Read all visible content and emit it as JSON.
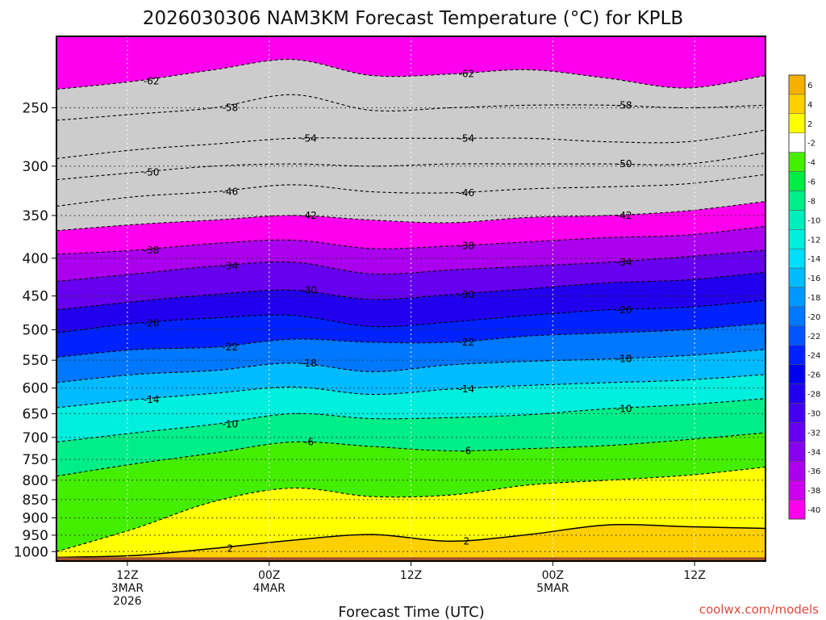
{
  "chart_data": {
    "type": "heatmap",
    "title": "2026030306 NAM3KM Forecast Temperature (°C) for KPLB",
    "xlabel": "Forecast Time (UTC)",
    "ylabel": "",
    "y_scale": "log-pressure",
    "y_inverted": true,
    "x_ticks": [
      {
        "lines": [
          "12Z",
          "3MAR",
          "2026"
        ]
      },
      {
        "lines": [
          "00Z",
          "4MAR"
        ]
      },
      {
        "lines": [
          "12Z"
        ]
      },
      {
        "lines": [
          "00Z",
          "5MAR"
        ]
      },
      {
        "lines": [
          "12Z"
        ]
      }
    ],
    "x_tick_hours": [
      6,
      18,
      30,
      42,
      54
    ],
    "xlim_hours": [
      0,
      60
    ],
    "y_ticks": [
      250,
      300,
      350,
      400,
      450,
      500,
      550,
      600,
      650,
      700,
      750,
      800,
      850,
      900,
      950,
      1000
    ],
    "ylim": [
      200,
      1030
    ],
    "grid": true,
    "colorbar": {
      "labels": [
        "6",
        "4",
        "2",
        "-2",
        "-4",
        "-6",
        "-8",
        "-10",
        "-12",
        "-14",
        "-16",
        "-18",
        "-20",
        "-22",
        "-24",
        "-26",
        "-28",
        "-30",
        "-32",
        "-34",
        "-36",
        "-38",
        "-40"
      ],
      "colors": [
        "#f5b000",
        "#ffd000",
        "#ffff00",
        "#ffffff",
        "#44ee00",
        "#00ee44",
        "#00ee88",
        "#00eebb",
        "#00eedd",
        "#00ddff",
        "#00bbff",
        "#0099ff",
        "#0077ff",
        "#0055ff",
        "#0022ff",
        "#0000ee",
        "#2200ee",
        "#4400ee",
        "#6600ee",
        "#8800ee",
        "#aa00ee",
        "#cc00ee",
        "#ff00ee"
      ]
    },
    "isotherms": [
      {
        "value": -62,
        "levels": [
          236,
          230,
          222,
          215,
          226,
          225,
          222,
          228,
          235,
          226
        ]
      },
      {
        "value": -58,
        "levels": [
          260,
          255,
          250,
          240,
          252,
          250,
          248,
          248,
          250,
          248
        ]
      },
      {
        "value": -54,
        "levels": [
          293,
          285,
          280,
          275,
          275,
          275,
          275,
          278,
          278,
          268
        ]
      },
      {
        "value": -50,
        "levels": [
          313,
          306,
          300,
          298,
          300,
          298,
          298,
          298,
          298,
          288
        ]
      },
      {
        "value": -46,
        "levels": [
          340,
          330,
          325,
          318,
          325,
          326,
          322,
          320,
          317,
          308
        ]
      },
      {
        "value": -42,
        "levels": [
          367,
          360,
          355,
          350,
          355,
          358,
          352,
          350,
          345,
          335
        ]
      },
      {
        "value": -38,
        "levels": [
          395,
          390,
          382,
          378,
          388,
          385,
          380,
          375,
          372,
          362
        ]
      },
      {
        "value": -34,
        "levels": [
          430,
          420,
          410,
          405,
          420,
          415,
          410,
          405,
          398,
          390
        ]
      },
      {
        "value": -30,
        "levels": [
          470,
          458,
          448,
          442,
          455,
          448,
          440,
          432,
          428,
          418
        ]
      },
      {
        "value": -26,
        "levels": [
          505,
          490,
          482,
          478,
          495,
          488,
          478,
          470,
          466,
          456
        ]
      },
      {
        "value": -22,
        "levels": [
          545,
          532,
          528,
          515,
          520,
          520,
          510,
          505,
          500,
          490
        ]
      },
      {
        "value": -18,
        "levels": [
          590,
          575,
          568,
          555,
          570,
          558,
          552,
          548,
          542,
          532
        ]
      },
      {
        "value": -14,
        "levels": [
          638,
          622,
          610,
          598,
          612,
          602,
          595,
          590,
          585,
          575
        ]
      },
      {
        "value": -10,
        "levels": [
          710,
          690,
          672,
          650,
          660,
          658,
          652,
          640,
          632,
          620
        ]
      },
      {
        "value": -6,
        "levels": [
          790,
          760,
          735,
          710,
          720,
          730,
          725,
          718,
          705,
          690
        ]
      },
      {
        "value": -2,
        "levels": [
          1000,
          930,
          855,
          820,
          842,
          838,
          812,
          800,
          788,
          768
        ]
      },
      {
        "value": 2,
        "levels": [
          1018,
          1012,
          990,
          965,
          948,
          968,
          948,
          920,
          925,
          930
        ]
      }
    ],
    "shown_contour_labels": [
      "-62",
      "-58",
      "-54",
      "-50",
      "-46",
      "-42",
      "-38",
      "-34",
      "-30",
      "-26",
      "-22",
      "-18",
      "-14",
      "-10",
      "-6",
      "2"
    ],
    "ground_pressure": 1018
  },
  "credit": "coolwx.com/models"
}
